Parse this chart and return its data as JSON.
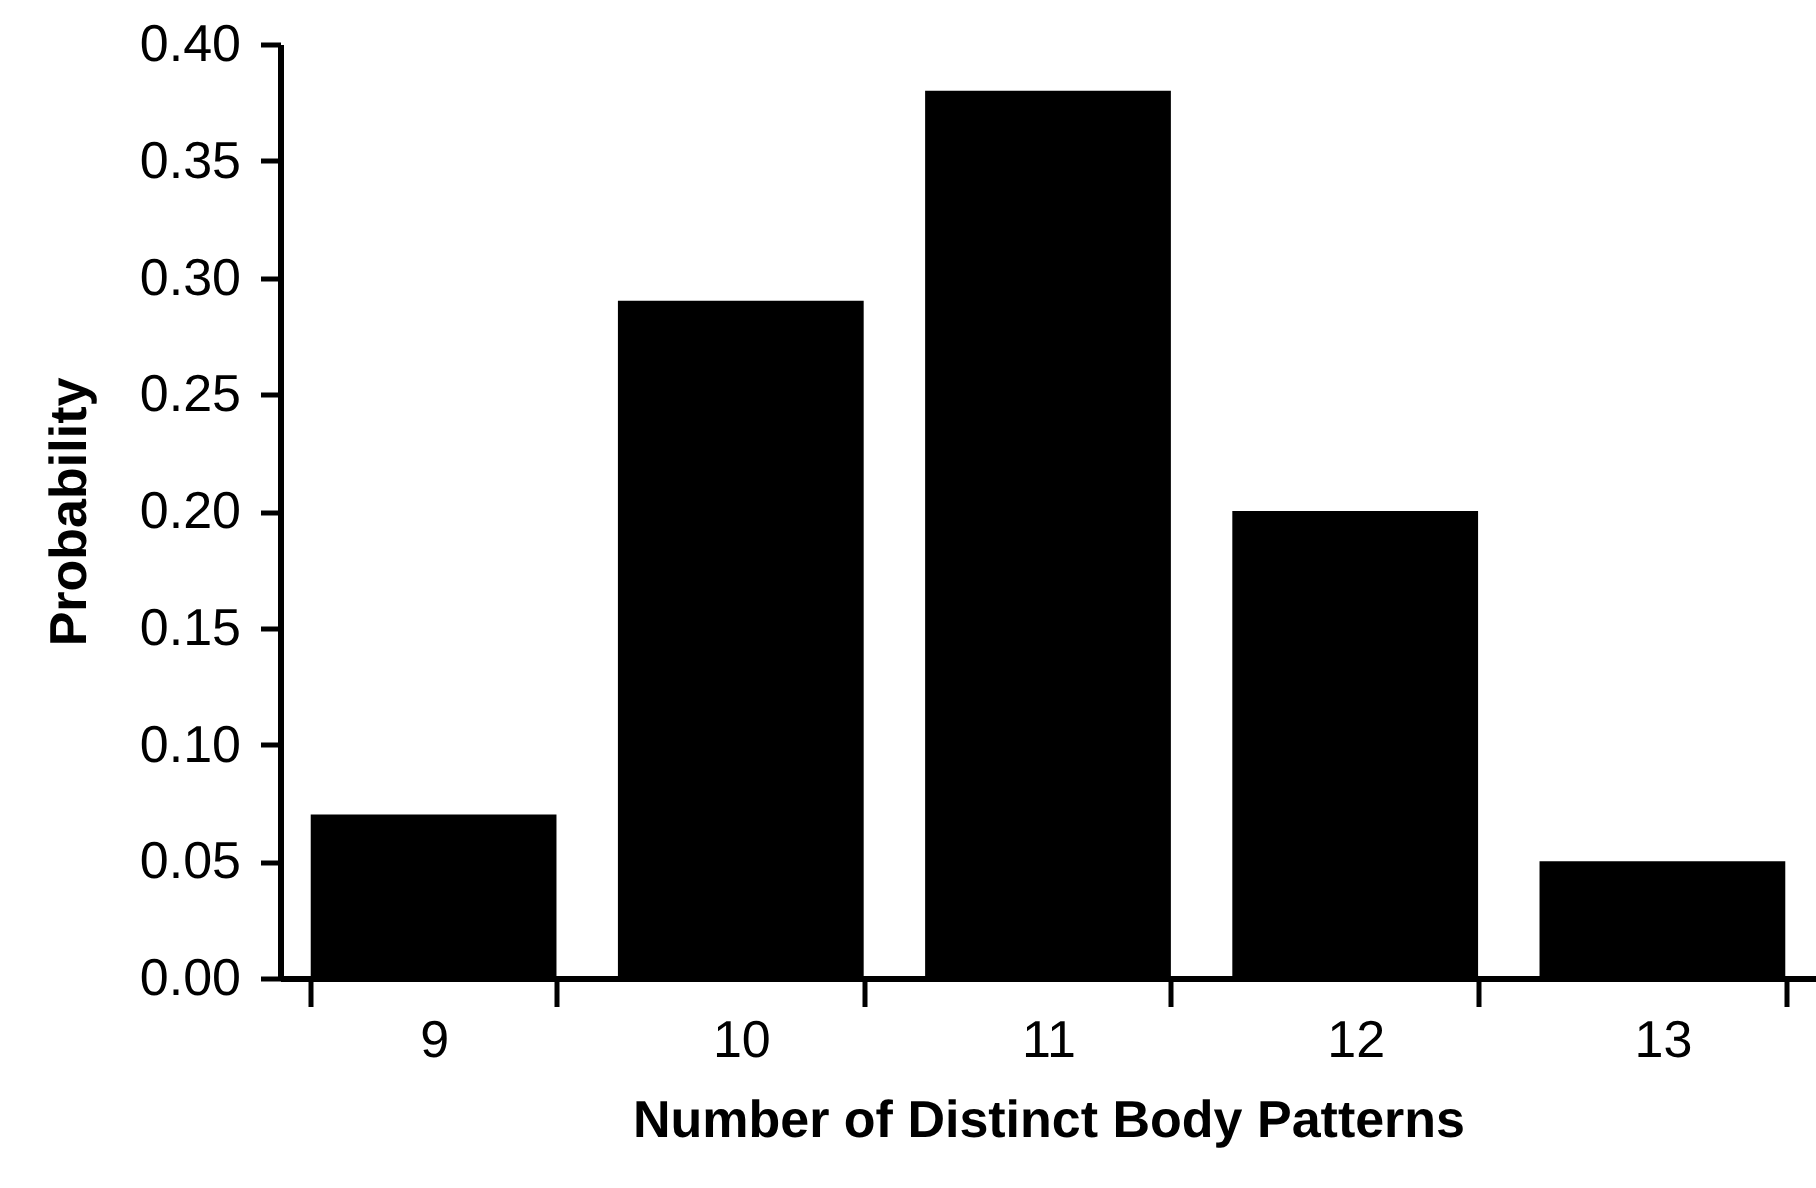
{
  "chart_data": {
    "type": "bar",
    "categories": [
      "9",
      "10",
      "11",
      "12",
      "13"
    ],
    "values": [
      0.07,
      0.29,
      0.38,
      0.2,
      0.05
    ],
    "color": "#000000",
    "xlabel": "Number of Distinct Body Patterns",
    "ylabel": "Probability",
    "ylim": [
      0,
      0.4
    ],
    "yticks": [
      {
        "value": 0,
        "label": "0.00"
      },
      {
        "value": 0.05,
        "label": "0.05"
      },
      {
        "value": 0.1,
        "label": "0.10"
      },
      {
        "value": 0.15,
        "label": "0.15"
      },
      {
        "value": 0.2,
        "label": "0.20"
      },
      {
        "value": 0.25,
        "label": "0.25"
      },
      {
        "value": 0.3,
        "label": "0.30"
      },
      {
        "value": 0.35,
        "label": "0.35"
      },
      {
        "value": 0.4,
        "label": "0.40"
      }
    ],
    "grid": false
  }
}
